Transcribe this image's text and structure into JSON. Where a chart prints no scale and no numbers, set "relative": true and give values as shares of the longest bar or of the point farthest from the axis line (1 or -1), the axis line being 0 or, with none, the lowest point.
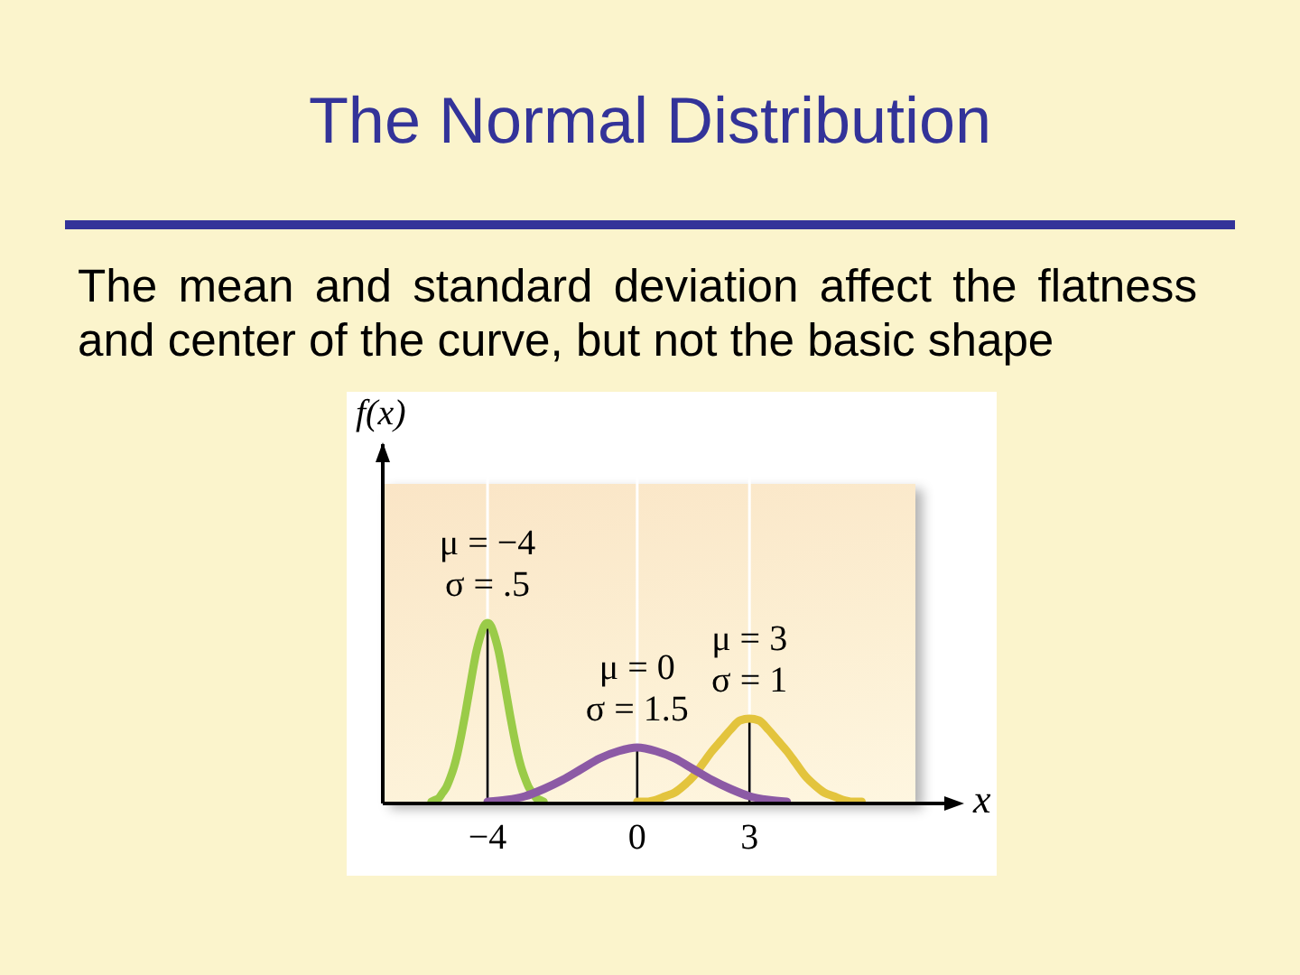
{
  "chart_data": {
    "type": "line",
    "title": "The Normal Distribution",
    "subtitle": "The mean and standard deviation affect the flatness and center of the curve, but not the basic shape",
    "xlabel": "x",
    "relative": true,
    "xlim": [
      -6.8,
      8.4
    ],
    "xticks": [
      {
        "value": -4,
        "label": "−4"
      },
      0,
      3
    ],
    "grid": "x",
    "series": [
      {
        "color": "#9acb48",
        "x": [
          -5.5,
          -5.4,
          -5.3,
          -5.2,
          -5.1,
          -5,
          -4.9,
          -4.8,
          -4.7,
          -4.6,
          -4.5,
          -4.4,
          -4.3,
          -4.2,
          -4.1,
          -4,
          -3.9,
          -3.8,
          -3.7,
          -3.6,
          -3.5,
          -3.4,
          -3.3,
          -3.2,
          -3.1,
          -3,
          -2.9,
          -2.8,
          -2.7,
          -2.6,
          -2.5
        ],
        "values": [
          0.01,
          0.02,
          0.03,
          0.06,
          0.09,
          0.14,
          0.2,
          0.28,
          0.38,
          0.49,
          0.61,
          0.73,
          0.84,
          0.92,
          0.98,
          1,
          0.98,
          0.92,
          0.84,
          0.73,
          0.61,
          0.49,
          0.38,
          0.28,
          0.2,
          0.14,
          0.09,
          0.06,
          0.03,
          0.02,
          0.01
        ]
      },
      {
        "color": "#e3c43d",
        "x": [
          0,
          0.25,
          0.5,
          0.75,
          1,
          1.25,
          1.5,
          1.75,
          2,
          2.25,
          2.5,
          2.75,
          3,
          3.25,
          3.5,
          3.75,
          4,
          4.25,
          4.5,
          4.75,
          5,
          5.25,
          5.5,
          5.75,
          6
        ],
        "values": [
          0.01,
          0.01,
          0.02,
          0.04,
          0.06,
          0.1,
          0.15,
          0.22,
          0.29,
          0.35,
          0.41,
          0.46,
          0.47,
          0.46,
          0.41,
          0.35,
          0.29,
          0.22,
          0.15,
          0.1,
          0.06,
          0.04,
          0.02,
          0.01,
          0.01
        ]
      },
      {
        "color": "#8c5aa5",
        "x": [
          -4,
          -3.5,
          -3,
          -2.5,
          -2,
          -1.5,
          -1,
          -0.5,
          0,
          0.5,
          1,
          1.5,
          2,
          2.5,
          3,
          3.5,
          4
        ],
        "values": [
          0.01,
          0.02,
          0.04,
          0.08,
          0.13,
          0.19,
          0.25,
          0.29,
          0.31,
          0.29,
          0.25,
          0.19,
          0.13,
          0.08,
          0.04,
          0.02,
          0.01
        ]
      }
    ],
    "ref_lines": [
      {
        "axis": "x",
        "value": -4
      },
      {
        "axis": "x",
        "value": 0
      },
      {
        "axis": "x",
        "value": 3
      }
    ],
    "annotations": [
      "f(x)",
      {
        "text": "μ = −4\nσ = .5",
        "x": -4,
        "y": 1
      },
      {
        "text": "μ = 0\nσ = 1.5",
        "x": 0,
        "y": 0.31
      },
      {
        "text": "μ = 3\nσ = 1",
        "x": 3,
        "y": 0.47
      }
    ]
  }
}
